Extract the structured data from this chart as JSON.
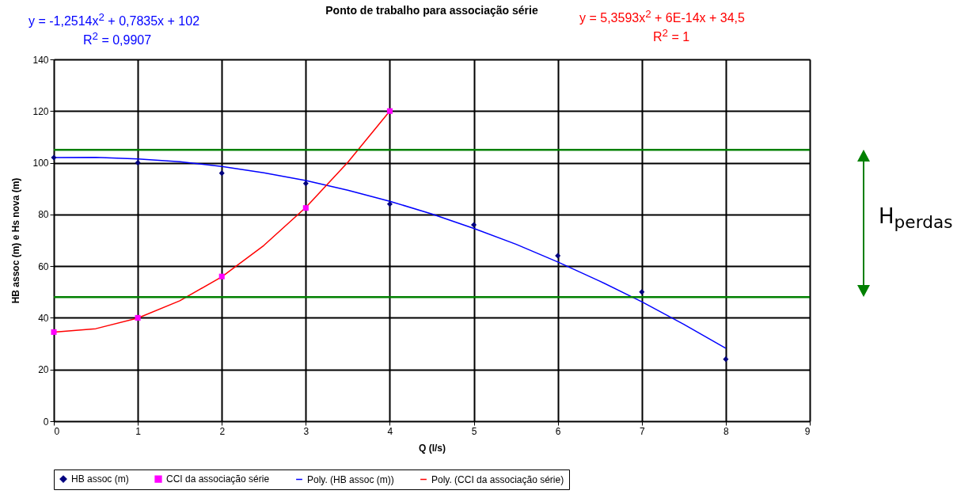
{
  "chart_data": {
    "type": "scatter",
    "title": "Ponto de trabalho para associação série",
    "xlabel": "Q (l/s)",
    "ylabel": "HB assoc (m) e Hs nova (m)",
    "xlim": [
      0,
      9
    ],
    "xticks": [
      0,
      1,
      2,
      3,
      4,
      5,
      6,
      7,
      8,
      9
    ],
    "ylim": [
      0,
      140
    ],
    "yticks": [
      0,
      20,
      40,
      60,
      80,
      100,
      120,
      140
    ],
    "grid": true,
    "legend": "bottom",
    "series": [
      {
        "name": "HB assoc (m)",
        "marker": "diamond",
        "color": "#000080",
        "x": [
          0,
          1,
          2,
          3,
          4,
          5,
          6,
          7,
          8
        ],
        "values": [
          102,
          100,
          96,
          92,
          84,
          76,
          64,
          50,
          24
        ]
      },
      {
        "name": "CCI da associação série",
        "marker": "square",
        "color": "#ff00ff",
        "x": [
          0,
          1,
          2,
          3,
          4
        ],
        "values": [
          34.5,
          40,
          56,
          82.5,
          120
        ]
      },
      {
        "name": "Poly. (HB assoc (m))",
        "type": "line",
        "marker": "none",
        "color": "#0000ff",
        "x": [
          0,
          0.5,
          1,
          1.5,
          2,
          2.5,
          3,
          3.5,
          4,
          4.5,
          5,
          5.5,
          6,
          6.5,
          7,
          7.5,
          8
        ],
        "values": [
          102,
          102.1,
          101.5,
          100.4,
          98.6,
          96.1,
          93.1,
          89.4,
          85.1,
          80.2,
          74.6,
          68.5,
          61.6,
          54.2,
          46.2,
          37.5,
          28.2
        ]
      },
      {
        "name": "Poly. (CCI da associação série)",
        "type": "line",
        "marker": "none",
        "color": "#ff0000",
        "x": [
          0,
          0.5,
          1,
          1.5,
          2,
          2.5,
          3,
          3.5,
          4
        ],
        "values": [
          34.5,
          35.8,
          39.9,
          46.6,
          55.9,
          68,
          82.7,
          100.2,
          120
        ]
      }
    ],
    "ref_lines": [
      {
        "axis": "y",
        "value": 105,
        "color": "#008000"
      },
      {
        "axis": "y",
        "value": 48,
        "color": "#008000"
      }
    ],
    "annotations": [
      "y = -1,2514x$^{2}$ + 0,7835x + 102",
      "R$^{2}$ = 0,9907",
      "y = 5,3593x$^{2}$ + 6E-14x + 34,5",
      "R$^{2}$ = 1",
      "H$_{perdas}$"
    ]
  }
}
